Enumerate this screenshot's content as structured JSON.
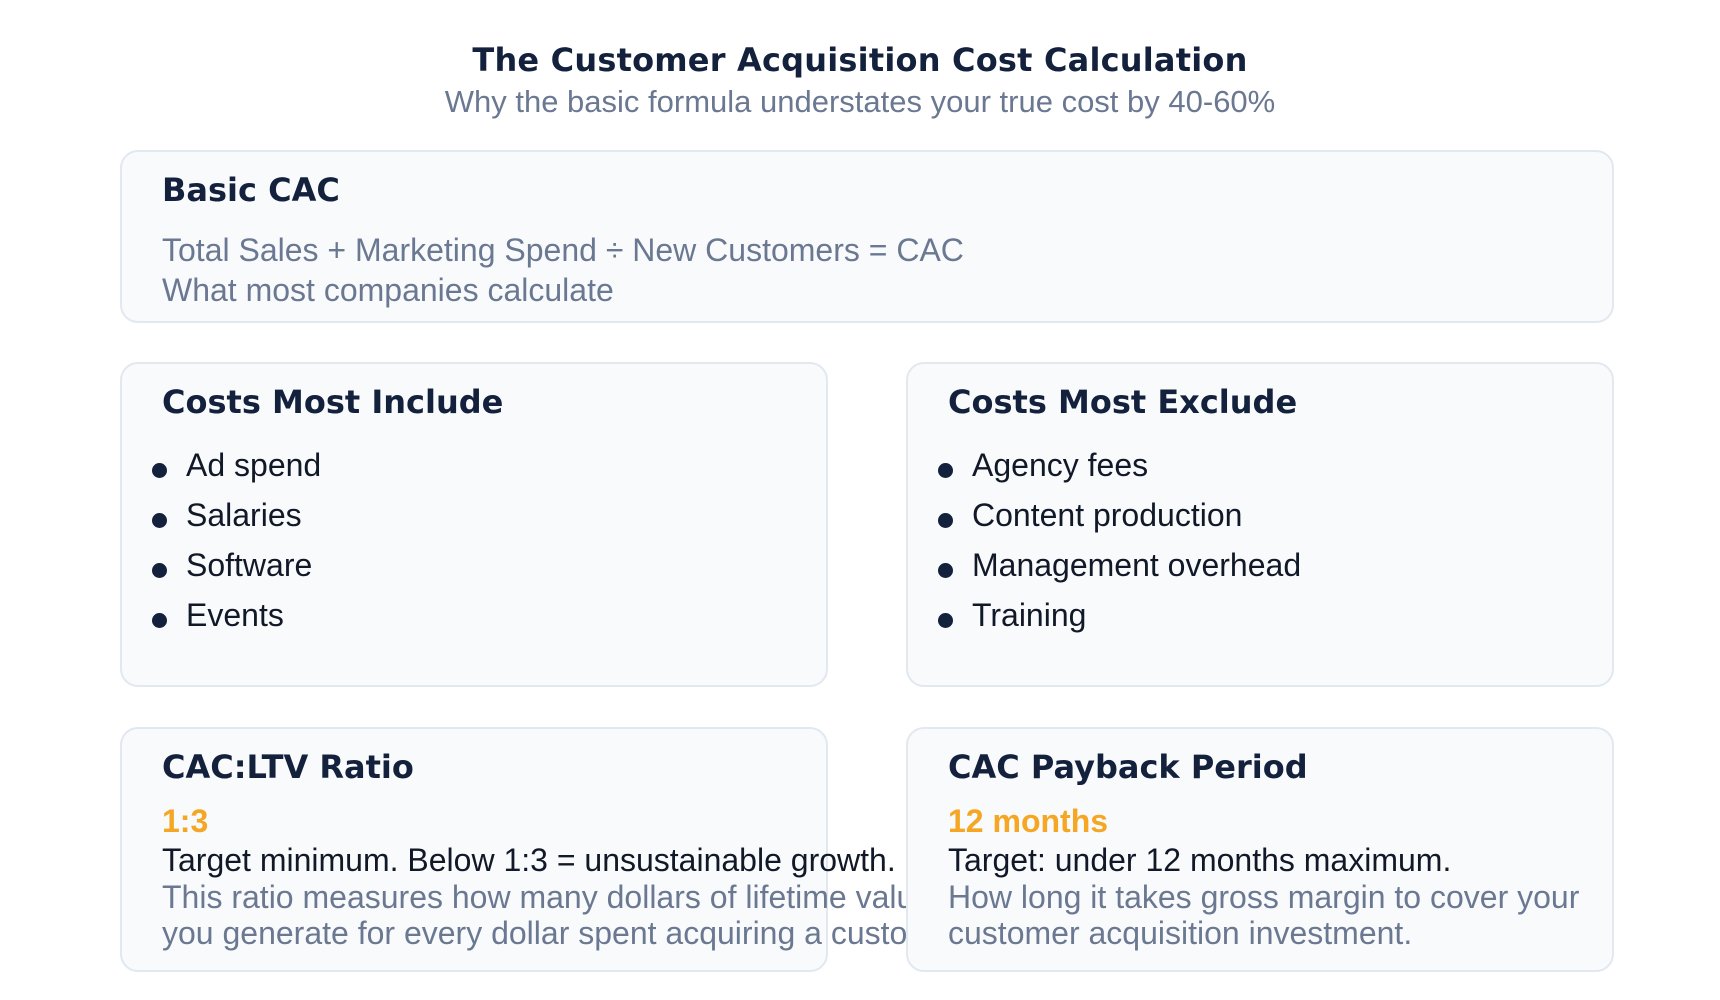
{
  "header": {
    "title": "The Customer Acquisition Cost Calculation",
    "subtitle": "Why the basic formula understates your true cost by 40-60%"
  },
  "basic_cac": {
    "title": "Basic CAC",
    "formula": "Total Sales + Marketing Spend ÷ New Customers = CAC",
    "note": "What most companies calculate"
  },
  "include": {
    "title": "Costs Most Include",
    "items": [
      "Ad spend",
      "Salaries",
      "Software",
      "Events"
    ]
  },
  "exclude": {
    "title": "Costs Most Exclude",
    "items": [
      "Agency fees",
      "Content production",
      "Management overhead",
      "Training"
    ]
  },
  "ratio": {
    "title": "CAC:LTV Ratio",
    "value": "1:3",
    "target": "Target minimum. Below 1:3 = unsustainable growth.",
    "desc_line1": "This ratio measures how many dollars of lifetime value",
    "desc_line2": "you generate for every dollar spent acquiring a customer."
  },
  "payback": {
    "title": "CAC Payback Period",
    "value": "12 months",
    "target": "Target: under 12 months maximum.",
    "desc_line1": "How long it takes gross margin to cover your",
    "desc_line2": "customer acquisition investment."
  },
  "colors": {
    "accent": "#f5a623",
    "heading": "#14213d",
    "muted": "#6b7891",
    "card_bg": "#f8fafc",
    "card_border": "#e2e8f0"
  }
}
